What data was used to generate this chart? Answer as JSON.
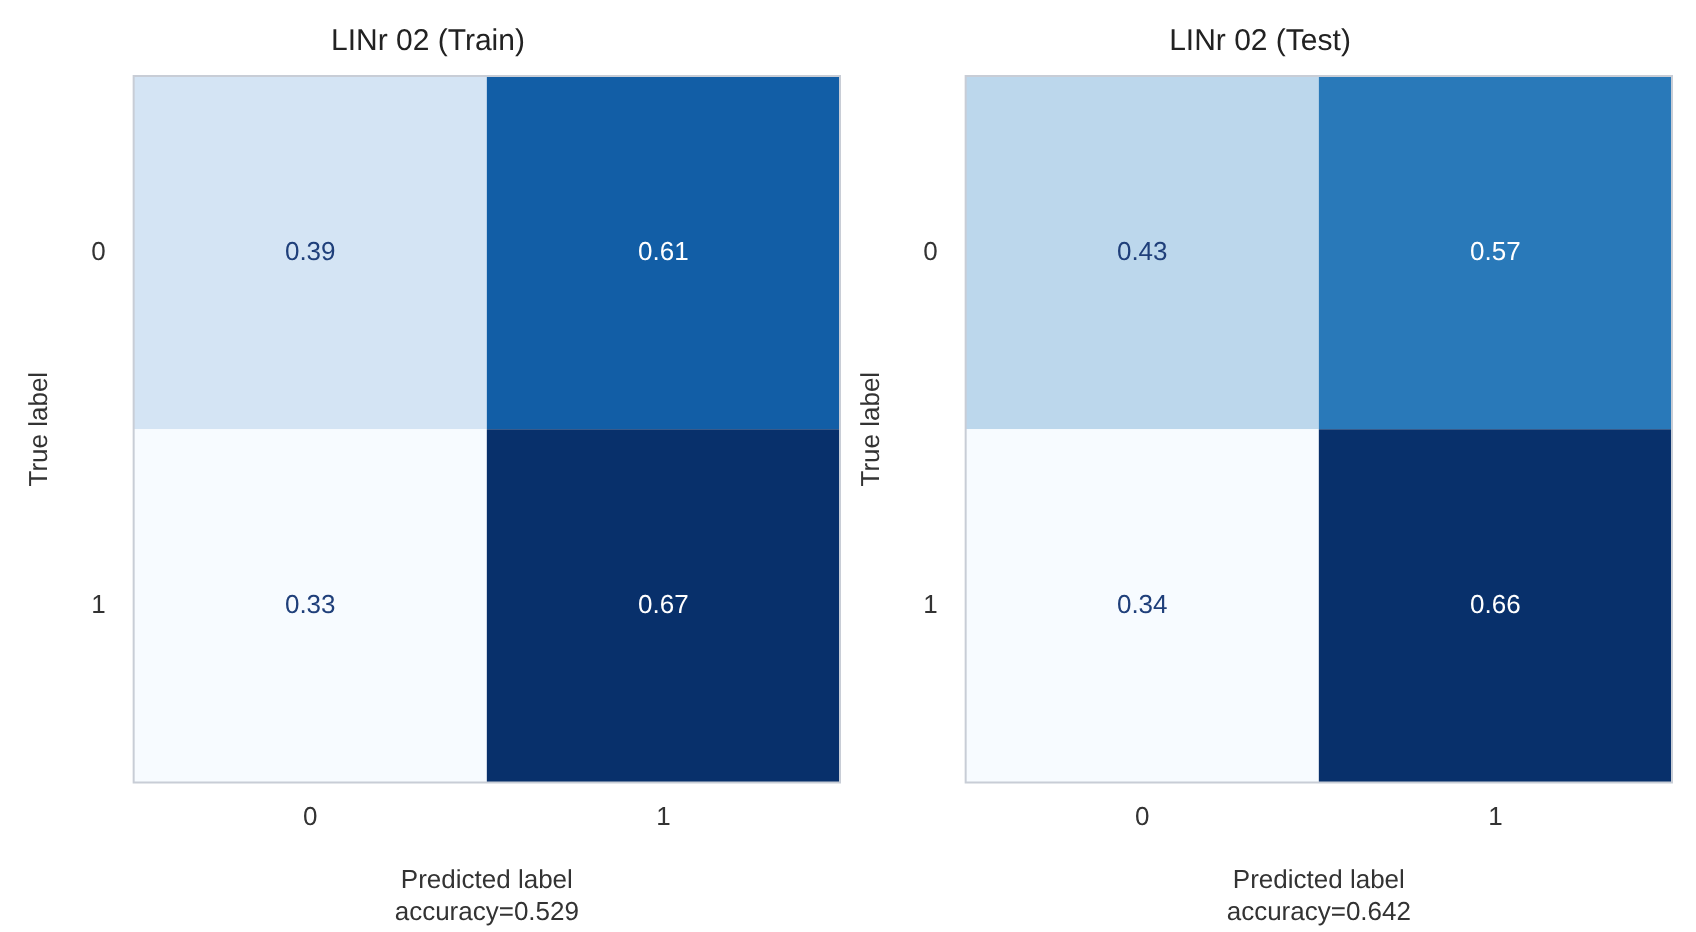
{
  "chart_data": [
    {
      "type": "heatmap",
      "title": "LINr 02 (Train)",
      "xlabel": "Predicted label",
      "ylabel": "True label",
      "categories": [
        "0",
        "1"
      ],
      "y_categories": [
        "0",
        "1"
      ],
      "cells": [
        [
          0.39,
          0.61
        ],
        [
          0.33,
          0.67
        ]
      ],
      "data_labels": true,
      "annotations": [
        "accuracy=0.529"
      ]
    },
    {
      "type": "heatmap",
      "title": "LINr 02 (Test)",
      "xlabel": "Predicted label",
      "ylabel": "True label",
      "categories": [
        "0",
        "1"
      ],
      "y_categories": [
        "0",
        "1"
      ],
      "cells": [
        [
          0.43,
          0.57
        ],
        [
          0.34,
          0.66
        ]
      ],
      "data_labels": true,
      "annotations": [
        "accuracy=0.642"
      ]
    }
  ]
}
